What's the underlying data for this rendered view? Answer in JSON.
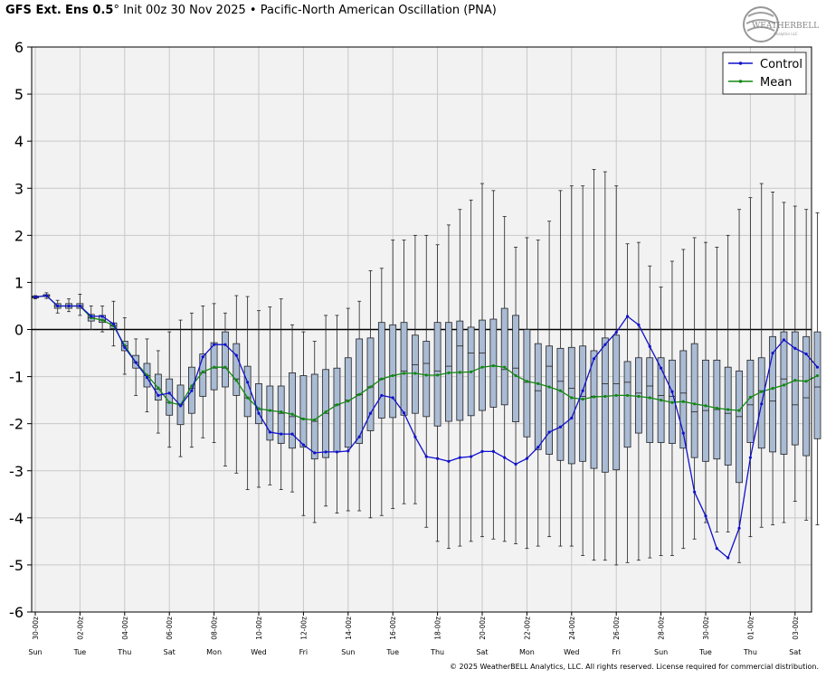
{
  "header": {
    "model": "GFS Ext.",
    "ensemble": "Ens 0.5",
    "degree": "°",
    "init": "Init 00z 30 Nov 2025",
    "bullet": "•",
    "index": "Pacific-North American Oscillation (PNA)"
  },
  "logo": {
    "text": "WEATHERBELL",
    "small": "Analytics LLC"
  },
  "footer": {
    "copyright": "© 2025 WeatherBELL Analytics, LLC. All rights reserved. License required for commercial distribution."
  },
  "colors": {
    "control": "#1111cc",
    "mean": "#118811",
    "box_fill": "#aabbd4",
    "plot_bg": "#f2f2f2",
    "grid": "#c8c8c8"
  },
  "chart_data": {
    "type": "box-and-line",
    "ylim": [
      -6,
      6
    ],
    "y_ticks": [
      6,
      5,
      4,
      3,
      2,
      1,
      0,
      -1,
      -2,
      -3,
      -4,
      -5,
      -6
    ],
    "x_date_ticks": [
      {
        "h": 0,
        "label": "30-00z"
      },
      {
        "h": 48,
        "label": "02-00z"
      },
      {
        "h": 96,
        "label": "04-00z"
      },
      {
        "h": 144,
        "label": "06-00z"
      },
      {
        "h": 192,
        "label": "08-00z"
      },
      {
        "h": 240,
        "label": "10-00z"
      },
      {
        "h": 288,
        "label": "12-00z"
      },
      {
        "h": 336,
        "label": "14-00z"
      },
      {
        "h": 384,
        "label": "16-00z"
      },
      {
        "h": 432,
        "label": "18-00z"
      },
      {
        "h": 480,
        "label": "20-00z"
      },
      {
        "h": 528,
        "label": "22-00z"
      },
      {
        "h": 576,
        "label": "24-00z"
      },
      {
        "h": 624,
        "label": "26-00z"
      },
      {
        "h": 672,
        "label": "28-00z"
      },
      {
        "h": 720,
        "label": "30-00z"
      },
      {
        "h": 768,
        "label": "01-00z"
      },
      {
        "h": 816,
        "label": "03-00z"
      }
    ],
    "x_day_ticks": [
      {
        "h": 0,
        "label": "Sun"
      },
      {
        "h": 48,
        "label": "Tue"
      },
      {
        "h": 96,
        "label": "Thu"
      },
      {
        "h": 144,
        "label": "Sat"
      },
      {
        "h": 192,
        "label": "Mon"
      },
      {
        "h": 240,
        "label": "Wed"
      },
      {
        "h": 288,
        "label": "Fri"
      },
      {
        "h": 336,
        "label": "Sun"
      },
      {
        "h": 384,
        "label": "Tue"
      },
      {
        "h": 432,
        "label": "Thu"
      },
      {
        "h": 480,
        "label": "Sat"
      },
      {
        "h": 528,
        "label": "Mon"
      },
      {
        "h": 576,
        "label": "Wed"
      },
      {
        "h": 624,
        "label": "Fri"
      },
      {
        "h": 672,
        "label": "Sun"
      },
      {
        "h": 720,
        "label": "Tue"
      },
      {
        "h": 768,
        "label": "Thu"
      },
      {
        "h": 816,
        "label": "Sat"
      }
    ],
    "legend": {
      "position": "top-right",
      "entries": [
        "Control",
        "Mean"
      ]
    },
    "series": [
      {
        "name": "Control",
        "values": [
          0.69,
          0.72,
          0.5,
          0.5,
          0.5,
          0.28,
          0.28,
          0.12,
          -0.38,
          -0.7,
          -1.02,
          -1.4,
          -1.35,
          -1.62,
          -1.3,
          -0.58,
          -0.32,
          -0.32,
          -0.55,
          -1.12,
          -1.78,
          -2.18,
          -2.22,
          -2.22,
          -2.45,
          -2.62,
          -2.6,
          -2.6,
          -2.58,
          -2.28,
          -1.78,
          -1.4,
          -1.45,
          -1.77,
          -2.28,
          -2.7,
          -2.74,
          -2.8,
          -2.72,
          -2.7,
          -2.59,
          -2.59,
          -2.72,
          -2.86,
          -2.74,
          -2.5,
          -2.18,
          -2.07,
          -1.88,
          -1.3,
          -0.62,
          -0.32,
          -0.06,
          0.28,
          0.1,
          -0.36,
          -0.82,
          -1.32,
          -2.2,
          -3.45,
          -3.96,
          -4.65,
          -4.85,
          -4.22,
          -2.72,
          -1.58,
          -0.5,
          -0.22,
          -0.4,
          -0.52,
          -0.8
        ]
      },
      {
        "name": "Mean",
        "values": [
          0.69,
          0.72,
          0.5,
          0.5,
          0.5,
          0.25,
          0.2,
          0.08,
          -0.34,
          -0.7,
          -0.97,
          -1.24,
          -1.55,
          -1.6,
          -1.2,
          -0.9,
          -0.8,
          -0.8,
          -1.08,
          -1.45,
          -1.68,
          -1.72,
          -1.75,
          -1.8,
          -1.9,
          -1.92,
          -1.75,
          -1.6,
          -1.52,
          -1.38,
          -1.22,
          -1.05,
          -0.98,
          -0.93,
          -0.93,
          -0.97,
          -0.97,
          -0.92,
          -0.91,
          -0.9,
          -0.8,
          -0.77,
          -0.8,
          -0.98,
          -1.1,
          -1.15,
          -1.22,
          -1.3,
          -1.45,
          -1.48,
          -1.43,
          -1.42,
          -1.4,
          -1.4,
          -1.42,
          -1.45,
          -1.5,
          -1.55,
          -1.53,
          -1.58,
          -1.62,
          -1.67,
          -1.7,
          -1.72,
          -1.44,
          -1.32,
          -1.25,
          -1.18,
          -1.08,
          -1.1,
          -0.98
        ]
      },
      {
        "name": "box_q1",
        "values": [
          0.67,
          0.7,
          0.45,
          0.45,
          0.45,
          0.18,
          0.15,
          0.02,
          -0.45,
          -0.82,
          -1.22,
          -1.5,
          -1.82,
          -2.02,
          -1.78,
          -1.42,
          -1.28,
          -1.22,
          -1.4,
          -1.85,
          -2.0,
          -2.35,
          -2.42,
          -2.52,
          -2.5,
          -2.75,
          -2.72,
          -2.6,
          -2.5,
          -2.42,
          -2.15,
          -1.88,
          -1.87,
          -1.82,
          -1.78,
          -1.85,
          -2.05,
          -1.95,
          -1.93,
          -1.83,
          -1.72,
          -1.65,
          -1.6,
          -1.96,
          -2.28,
          -2.55,
          -2.65,
          -2.78,
          -2.85,
          -2.8,
          -2.95,
          -3.03,
          -2.98,
          -2.5,
          -2.2,
          -2.4,
          -2.4,
          -2.42,
          -2.52,
          -2.72,
          -2.8,
          -2.75,
          -2.88,
          -3.25,
          -2.4,
          -2.52,
          -2.6,
          -2.65,
          -2.45,
          -2.68,
          -2.32
        ]
      },
      {
        "name": "box_median",
        "values": [
          0.69,
          0.72,
          0.5,
          0.5,
          0.5,
          0.25,
          0.2,
          0.08,
          -0.35,
          -0.7,
          -0.98,
          -1.27,
          -1.55,
          -1.6,
          -1.25,
          -0.92,
          -0.82,
          -0.82,
          -1.05,
          -1.45,
          -1.7,
          -1.72,
          -1.78,
          -1.85,
          -1.9,
          -1.95,
          -1.78,
          -1.6,
          -1.5,
          -1.38,
          -1.22,
          -1.05,
          -0.98,
          -0.88,
          -0.75,
          -0.72,
          -0.88,
          -0.78,
          -0.35,
          -0.5,
          -0.5,
          -0.77,
          -0.85,
          -0.82,
          -1.12,
          -1.3,
          -0.78,
          -1.1,
          -1.25,
          -1.42,
          -1.42,
          -1.15,
          -1.15,
          -1.12,
          -1.35,
          -1.2,
          -1.4,
          -1.42,
          -1.35,
          -1.75,
          -1.72,
          -1.7,
          -1.78,
          -1.85,
          -1.6,
          -1.3,
          -1.52,
          -1.05,
          -1.6,
          -1.45,
          -1.22
        ]
      },
      {
        "name": "box_q3",
        "values": [
          0.71,
          0.74,
          0.55,
          0.55,
          0.55,
          0.32,
          0.3,
          0.14,
          -0.25,
          -0.55,
          -0.72,
          -0.95,
          -1.05,
          -1.18,
          -0.8,
          -0.52,
          -0.28,
          -0.05,
          -0.3,
          -0.78,
          -1.15,
          -1.2,
          -1.2,
          -0.92,
          -0.98,
          -0.95,
          -0.85,
          -0.82,
          -0.6,
          -0.2,
          -0.18,
          0.15,
          0.1,
          0.15,
          -0.12,
          -0.25,
          0.15,
          0.15,
          0.18,
          0.05,
          0.2,
          0.22,
          0.45,
          0.3,
          0.0,
          -0.3,
          -0.35,
          -0.4,
          -0.38,
          -0.35,
          -0.45,
          -0.18,
          -0.12,
          -0.68,
          -0.6,
          -0.6,
          -0.6,
          -0.65,
          -0.45,
          -0.3,
          -0.65,
          -0.65,
          -0.8,
          -0.88,
          -0.65,
          -0.6,
          -0.15,
          -0.05,
          -0.05,
          -0.15,
          -0.05
        ]
      },
      {
        "name": "whisker_min",
        "values": [
          0.65,
          0.66,
          0.35,
          0.38,
          0.3,
          0.0,
          -0.05,
          -0.35,
          -0.95,
          -1.4,
          -1.75,
          -2.2,
          -2.5,
          -2.7,
          -2.5,
          -2.3,
          -2.4,
          -2.9,
          -3.05,
          -3.4,
          -3.35,
          -3.3,
          -3.4,
          -3.45,
          -3.95,
          -4.1,
          -3.75,
          -3.9,
          -3.85,
          -3.85,
          -4.0,
          -3.95,
          -3.8,
          -3.7,
          -3.7,
          -4.2,
          -4.5,
          -4.65,
          -4.6,
          -4.5,
          -4.4,
          -4.45,
          -4.5,
          -4.55,
          -4.65,
          -4.6,
          -4.4,
          -4.6,
          -4.6,
          -4.8,
          -4.9,
          -4.9,
          -5.0,
          -4.95,
          -4.9,
          -4.85,
          -4.8,
          -4.8,
          -4.65,
          -4.45,
          -4.1,
          -4.3,
          -4.3,
          -4.95,
          -4.4,
          -4.2,
          -4.15,
          -4.1,
          -3.65,
          -4.05,
          -4.15
        ]
      },
      {
        "name": "whisker_max",
        "values": [
          0.72,
          0.78,
          0.62,
          0.65,
          0.75,
          0.5,
          0.5,
          0.6,
          0.25,
          -0.2,
          -0.2,
          -0.45,
          -0.05,
          0.2,
          0.35,
          0.5,
          0.55,
          0.35,
          0.72,
          0.7,
          0.4,
          0.48,
          0.65,
          0.1,
          -0.05,
          -0.25,
          0.3,
          0.3,
          0.45,
          0.6,
          1.25,
          1.3,
          1.9,
          1.9,
          2.0,
          2.0,
          1.8,
          2.22,
          2.55,
          2.75,
          3.1,
          2.95,
          2.4,
          1.75,
          1.95,
          1.9,
          2.3,
          2.95,
          3.05,
          3.05,
          3.4,
          3.35,
          3.05,
          1.82,
          1.85,
          1.35,
          0.9,
          1.45,
          1.7,
          1.95,
          1.85,
          1.75,
          2.0,
          2.55,
          2.8,
          3.1,
          2.92,
          2.7,
          2.62,
          2.55,
          2.48
        ]
      }
    ]
  }
}
